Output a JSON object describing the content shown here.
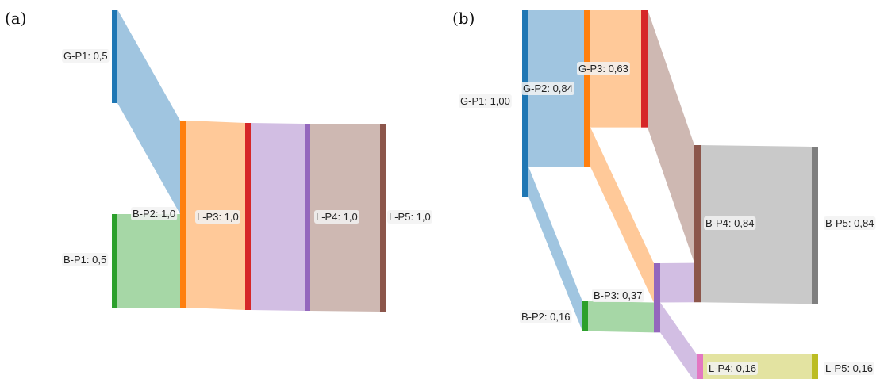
{
  "panels": [
    {
      "id": "a",
      "label": "(a)",
      "nodes": [
        {
          "id": "G-P1",
          "label": "G-P1: 0,5",
          "value": 0.5
        },
        {
          "id": "B-P1",
          "label": "B-P1: 0,5",
          "value": 0.5
        },
        {
          "id": "B-P2",
          "label": "B-P2: 1,0",
          "value": 1.0
        },
        {
          "id": "L-P3",
          "label": "L-P3: 1,0",
          "value": 1.0
        },
        {
          "id": "L-P4",
          "label": "L-P4: 1,0",
          "value": 1.0
        },
        {
          "id": "L-P5",
          "label": "L-P5: 1,0",
          "value": 1.0
        }
      ],
      "links": [
        {
          "source": "G-P1",
          "target": "B-P2",
          "value": 0.5
        },
        {
          "source": "B-P1",
          "target": "B-P2",
          "value": 0.5
        },
        {
          "source": "B-P2",
          "target": "L-P3",
          "value": 1.0
        },
        {
          "source": "L-P3",
          "target": "L-P4",
          "value": 1.0
        },
        {
          "source": "L-P4",
          "target": "L-P5",
          "value": 1.0
        }
      ]
    },
    {
      "id": "b",
      "label": "(b)",
      "nodes": [
        {
          "id": "G-P1",
          "label": "G-P1: 1,00",
          "value": 1.0
        },
        {
          "id": "G-P2",
          "label": "G-P2: 0,84",
          "value": 0.84
        },
        {
          "id": "G-P3",
          "label": "G-P3: 0,63",
          "value": 0.63
        },
        {
          "id": "B-P2",
          "label": "B-P2: 0,16",
          "value": 0.16
        },
        {
          "id": "B-P3",
          "label": "B-P3: 0,37",
          "value": 0.37
        },
        {
          "id": "B-P4",
          "label": "B-P4: 0,84",
          "value": 0.84
        },
        {
          "id": "B-P5",
          "label": "B-P5: 0,84",
          "value": 0.84
        },
        {
          "id": "L-P4",
          "label": "L-P4: 0,16",
          "value": 0.16
        },
        {
          "id": "L-P5",
          "label": "L-P5: 0,16",
          "value": 0.16
        }
      ],
      "links": [
        {
          "source": "G-P1",
          "target": "G-P2",
          "value": 0.84
        },
        {
          "source": "G-P1",
          "target": "B-P2",
          "value": 0.16
        },
        {
          "source": "G-P2",
          "target": "G-P3",
          "value": 0.63
        },
        {
          "source": "G-P2",
          "target": "B-P3",
          "value": 0.21
        },
        {
          "source": "B-P2",
          "target": "B-P3",
          "value": 0.16
        },
        {
          "source": "G-P3",
          "target": "B-P4",
          "value": 0.63
        },
        {
          "source": "B-P3",
          "target": "B-P4",
          "value": 0.21
        },
        {
          "source": "B-P3",
          "target": "L-P4",
          "value": 0.16
        },
        {
          "source": "B-P4",
          "target": "B-P5",
          "value": 0.84
        },
        {
          "source": "L-P4",
          "target": "L-P5",
          "value": 0.16
        }
      ]
    }
  ],
  "colors": {
    "blue": "#1f77b4",
    "orange": "#ff7f0e",
    "green": "#2ca02c",
    "red": "#d62728",
    "purple": "#9467bd",
    "brown": "#8c564b",
    "pink": "#e377c2",
    "gray": "#7f7f7f",
    "olive": "#bcbd22"
  }
}
